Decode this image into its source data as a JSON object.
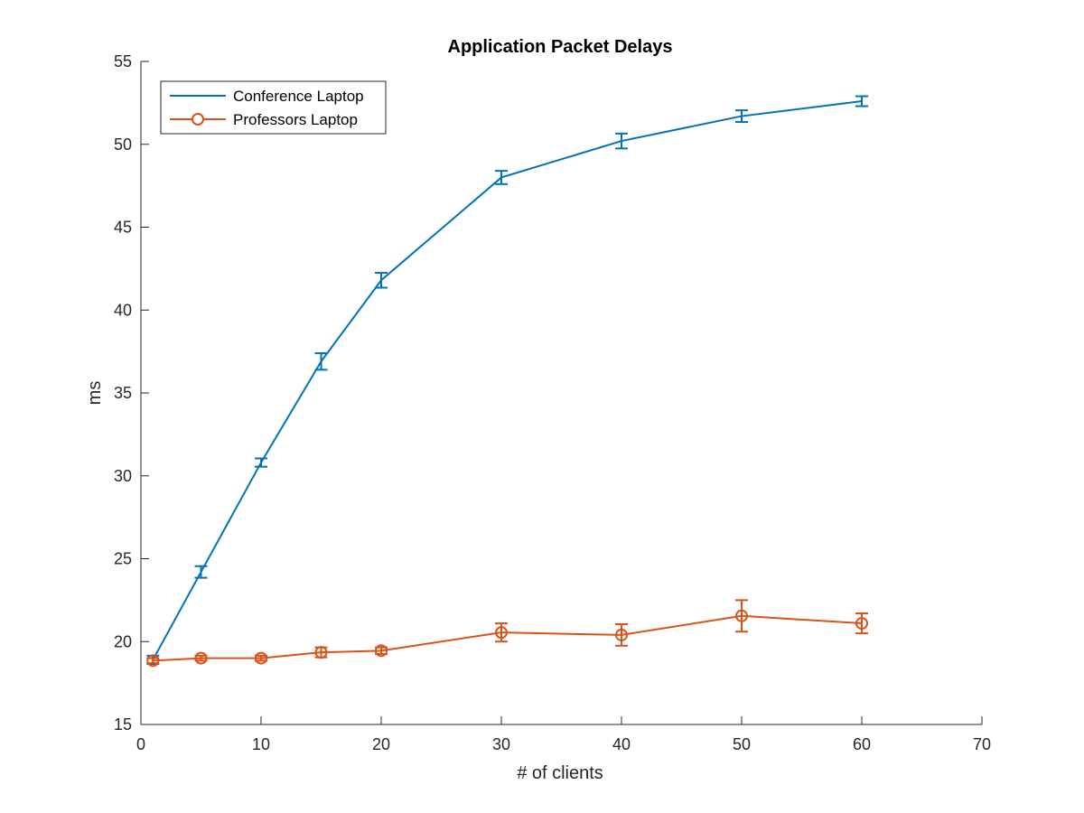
{
  "chart_data": {
    "type": "line",
    "title": "Application Packet Delays",
    "xlabel": "# of clients",
    "ylabel": "ms",
    "xlim": [
      0,
      70
    ],
    "ylim": [
      15,
      55
    ],
    "xticks": [
      0,
      10,
      20,
      30,
      40,
      50,
      60,
      70
    ],
    "yticks": [
      15,
      20,
      25,
      30,
      35,
      40,
      45,
      50,
      55
    ],
    "grid": false,
    "legend_position": "top-left",
    "series": [
      {
        "name": "Conference Laptop",
        "color": "#0072BD",
        "marker": "none",
        "x": [
          1,
          5,
          10,
          15,
          20,
          30,
          40,
          50,
          60
        ],
        "y": [
          18.9,
          24.2,
          30.8,
          36.9,
          41.8,
          48.0,
          50.2,
          51.7,
          52.6
        ],
        "err": [
          0.25,
          0.35,
          0.25,
          0.5,
          0.45,
          0.4,
          0.45,
          0.35,
          0.3
        ]
      },
      {
        "name": "Professors Laptop",
        "color": "#D95319",
        "marker": "circle",
        "x": [
          1,
          5,
          10,
          15,
          20,
          30,
          40,
          50,
          60
        ],
        "y": [
          18.85,
          19.0,
          19.0,
          19.35,
          19.45,
          20.55,
          20.4,
          21.55,
          21.1
        ],
        "err": [
          0.15,
          0.15,
          0.15,
          0.3,
          0.2,
          0.55,
          0.65,
          0.95,
          0.6
        ]
      }
    ]
  }
}
